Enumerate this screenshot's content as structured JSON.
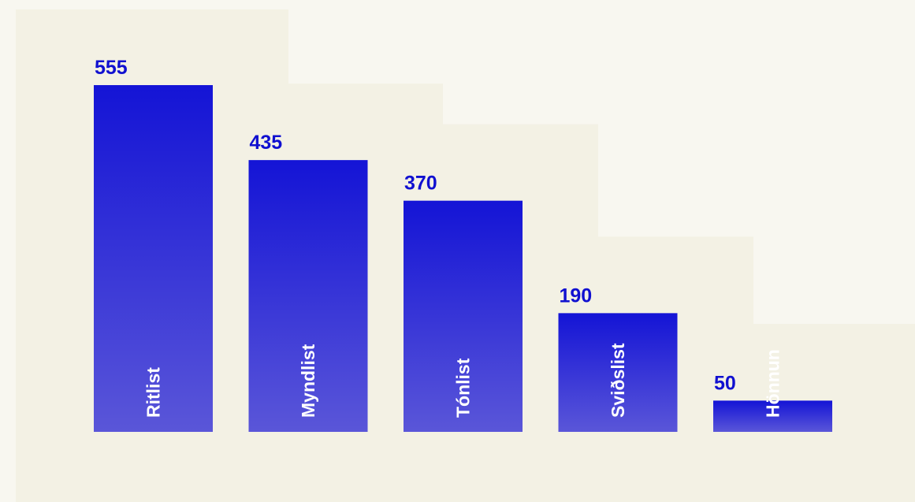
{
  "chart_data": {
    "type": "bar",
    "title": "",
    "xlabel": "",
    "ylabel": "",
    "categories": [
      "Ritlist",
      "Myndlist",
      "Tónlist",
      "Sviðslist",
      "Hönnun"
    ],
    "values": [
      555,
      435,
      370,
      190,
      50
    ],
    "ylim": [
      0,
      555
    ],
    "grid": false,
    "legend": "none"
  },
  "colors": {
    "page_background": "#f8f7f0",
    "panel_background": "#f3f1e4",
    "bar_top": "#1414d6",
    "bar_bottom": "#5a56d8",
    "value_text": "#1010d0",
    "category_text": "#ffffff",
    "last_bar_start": "#1a1ab0",
    "last_bar_end": "#0a0a78"
  }
}
